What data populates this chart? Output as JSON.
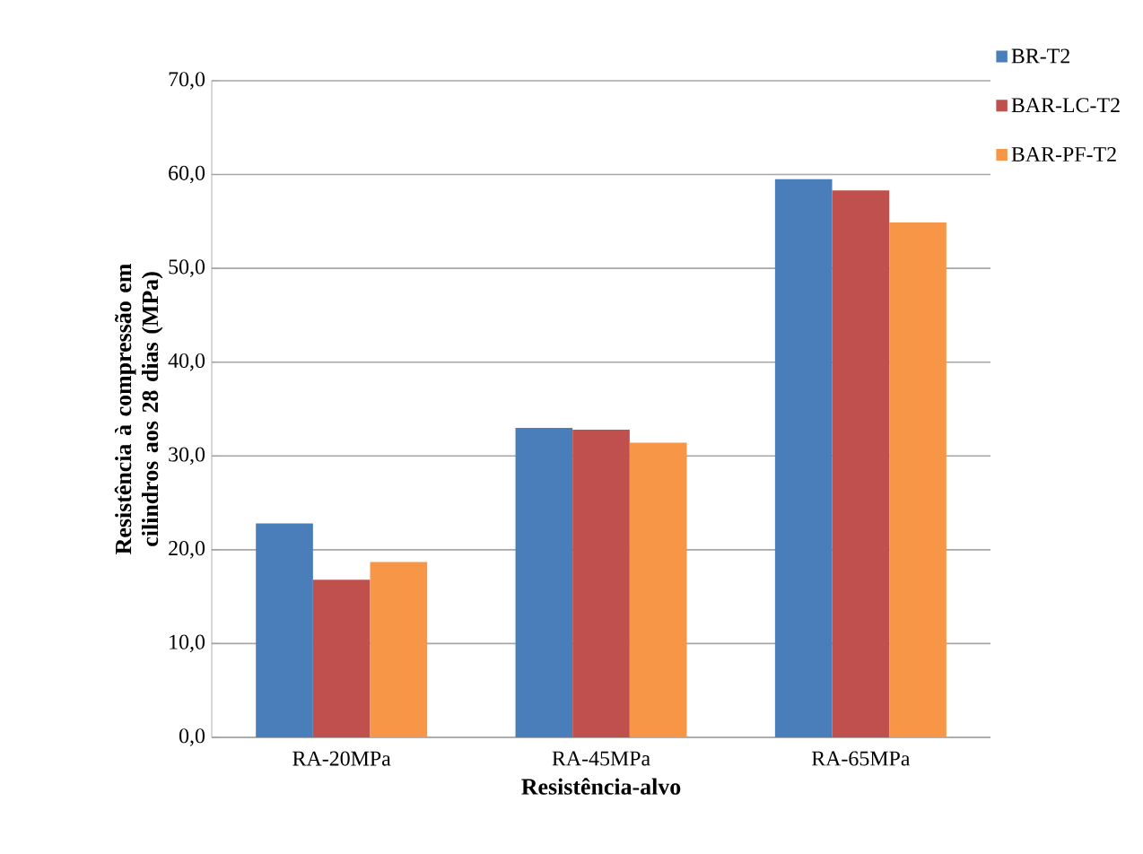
{
  "chart_data": {
    "type": "bar",
    "xlabel": "Resistência-alvo",
    "ylabel": "Resistência à compressão em cilindros aos 28 dias (MPa)",
    "categories": [
      "RA-20MPa",
      "RA-45MPa",
      "RA-65MPa"
    ],
    "series": [
      {
        "name": "BR-T2",
        "color": "#4a7ebb",
        "values": [
          22.8,
          33.0,
          59.5
        ]
      },
      {
        "name": "BAR-LC-T2",
        "color": "#c0504d",
        "values": [
          16.8,
          32.8,
          58.3
        ]
      },
      {
        "name": "BAR-PF-T2",
        "color": "#f79646",
        "values": [
          18.7,
          31.4,
          54.9
        ]
      }
    ],
    "ylim": [
      0,
      70
    ],
    "yticks": [
      {
        "value": 0,
        "label": "0,0"
      },
      {
        "value": 10,
        "label": "10,0"
      },
      {
        "value": 20,
        "label": "20,0"
      },
      {
        "value": 30,
        "label": "30,0"
      },
      {
        "value": 40,
        "label": "40,0"
      },
      {
        "value": 50,
        "label": "50,0"
      },
      {
        "value": 60,
        "label": "60,0"
      },
      {
        "value": 70,
        "label": "70,0"
      }
    ],
    "grid": "y",
    "legend": "top right"
  }
}
